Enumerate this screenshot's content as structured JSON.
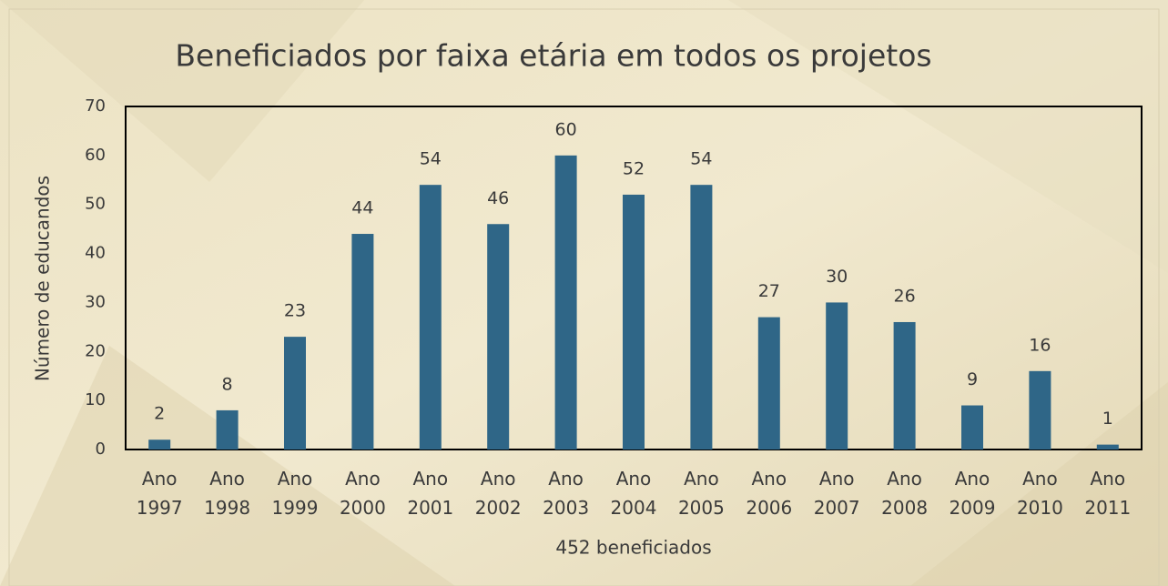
{
  "chart_data": {
    "type": "bar",
    "title": "Beneficiados por faixa etária em todos os projetos",
    "x_label": "452 beneficiados",
    "y_label": "Número de educandos",
    "categories": [
      "Ano 1997",
      "Ano 1998",
      "Ano 1999",
      "Ano 2000",
      "Ano 2001",
      "Ano 2002",
      "Ano 2003",
      "Ano 2004",
      "Ano 2005",
      "Ano 2006",
      "Ano 2007",
      "Ano 2008",
      "Ano 2009",
      "Ano 2010",
      "Ano 2011"
    ],
    "values": [
      2,
      8,
      23,
      44,
      54,
      46,
      60,
      52,
      54,
      27,
      30,
      26,
      9,
      16,
      1
    ],
    "color": "#2f6687",
    "ylim": [
      0,
      70
    ],
    "yticks": [
      0,
      10,
      20,
      30,
      40,
      50,
      60,
      70
    ],
    "grid": false
  }
}
